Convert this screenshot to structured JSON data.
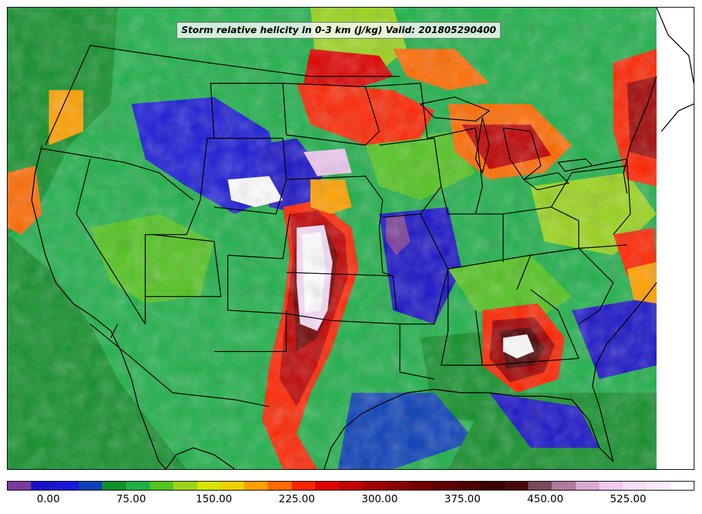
{
  "title": "Storm relative helicity in 0-3 km (J/kg) Valid: 201805290400",
  "colorbar": {
    "colors": [
      "#7a3a9a",
      "#1a12c8",
      "#1a1ad8",
      "#0b40b8",
      "#12902a",
      "#1fb04a",
      "#52c41f",
      "#9ad41a",
      "#d2e600",
      "#f0d000",
      "#ffa000",
      "#ff6a00",
      "#ff2400",
      "#e00000",
      "#c00000",
      "#a20000",
      "#8a0000",
      "#720000",
      "#600000",
      "#4e0000",
      "#3c0000",
      "#4a0808",
      "#7a4a5a",
      "#b07aa0",
      "#d8a8d0",
      "#f0c8f0",
      "#f8dcf8",
      "#fceafc",
      "#ffffff"
    ],
    "tick_labels": [
      "0.00",
      "75.00",
      "150.00",
      "225.00",
      "300.00",
      "375.00",
      "450.00",
      "525.00"
    ],
    "tick_values": [
      0,
      75,
      150,
      225,
      300,
      375,
      450,
      525
    ],
    "min": -37.5,
    "max": 585
  }
}
